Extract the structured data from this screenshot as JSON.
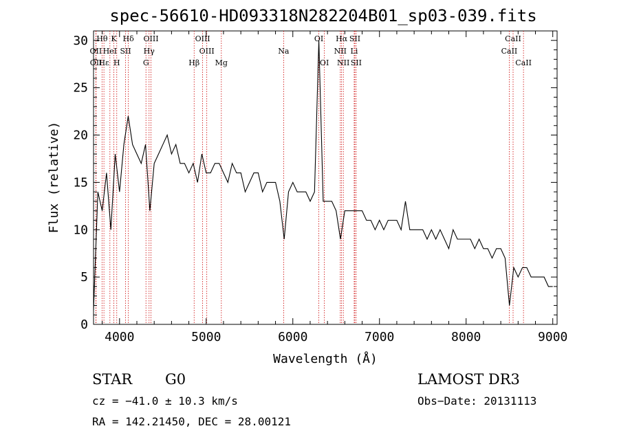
{
  "chart_data": {
    "type": "line",
    "title": "spec-56610-HD093318N282204B01_sp03-039.fits",
    "xlabel": "Wavelength (Å)",
    "ylabel": "Flux (relative)",
    "xlim": [
      3700,
      9050
    ],
    "ylim": [
      0,
      31
    ],
    "xticks": [
      4000,
      5000,
      6000,
      7000,
      8000,
      9000
    ],
    "yticks": [
      0,
      5,
      10,
      15,
      20,
      25,
      30
    ],
    "xtick_labels": [
      "4000",
      "5000",
      "6000",
      "7000",
      "8000",
      "9000"
    ],
    "ytick_labels": [
      "0",
      "5",
      "10",
      "15",
      "20",
      "25",
      "30"
    ],
    "series": [
      {
        "name": "flux",
        "color": "#000000",
        "x": [
          3700,
          3750,
          3800,
          3850,
          3900,
          3950,
          4000,
          4050,
          4100,
          4150,
          4200,
          4250,
          4300,
          4350,
          4400,
          4450,
          4500,
          4550,
          4600,
          4650,
          4700,
          4750,
          4800,
          4850,
          4900,
          4950,
          5000,
          5050,
          5100,
          5150,
          5200,
          5250,
          5300,
          5350,
          5400,
          5450,
          5500,
          5550,
          5600,
          5650,
          5700,
          5750,
          5800,
          5850,
          5900,
          5950,
          6000,
          6050,
          6100,
          6150,
          6200,
          6250,
          6300,
          6350,
          6400,
          6450,
          6500,
          6550,
          6600,
          6650,
          6700,
          6750,
          6800,
          6850,
          6900,
          6950,
          7000,
          7050,
          7100,
          7150,
          7200,
          7250,
          7300,
          7350,
          7400,
          7450,
          7500,
          7550,
          7600,
          7650,
          7700,
          7750,
          7800,
          7850,
          7900,
          7950,
          8000,
          8050,
          8100,
          8150,
          8200,
          8250,
          8300,
          8350,
          8400,
          8450,
          8500,
          8550,
          8600,
          8650,
          8700,
          8750,
          8800,
          8850,
          8900,
          8950,
          9000
        ],
        "y": [
          1.5,
          14,
          12,
          16,
          10,
          18,
          14,
          19,
          22,
          19,
          18,
          17,
          19,
          12,
          17,
          18,
          19,
          20,
          18,
          19,
          17,
          17,
          16,
          17,
          15,
          18,
          16,
          16,
          17,
          17,
          16,
          15,
          17,
          16,
          16,
          14,
          15,
          16,
          16,
          14,
          15,
          15,
          15,
          13,
          9,
          14,
          15,
          14,
          14,
          14,
          13,
          14,
          30,
          13,
          13,
          13,
          12,
          9,
          12,
          12,
          12,
          12,
          12,
          11,
          11,
          10,
          11,
          10,
          11,
          11,
          11,
          10,
          13,
          10,
          10,
          10,
          10,
          9,
          10,
          9,
          10,
          9,
          8,
          10,
          9,
          9,
          9,
          9,
          8,
          9,
          8,
          8,
          7,
          8,
          8,
          7,
          2,
          6,
          5,
          6,
          6,
          5,
          5,
          5,
          5,
          4,
          4
        ]
      }
    ],
    "lines": [
      {
        "label": "Hθ",
        "x": 3798,
        "row": 1
      },
      {
        "label": "OII",
        "x": 3727,
        "row": 2
      },
      {
        "label": "OII",
        "x": 3729,
        "row": 3
      },
      {
        "label": "Hε",
        "x": 3820,
        "row": 3
      },
      {
        "label": "HeI",
        "x": 3889,
        "row": 2
      },
      {
        "label": "K",
        "x": 3934,
        "row": 1
      },
      {
        "label": "SII",
        "x": 4070,
        "row": 2
      },
      {
        "label": "H",
        "x": 3968,
        "row": 3
      },
      {
        "label": "Hδ",
        "x": 4102,
        "row": 1
      },
      {
        "label": "OIII",
        "x": 4363,
        "row": 1
      },
      {
        "label": "Hγ",
        "x": 4341,
        "row": 2
      },
      {
        "label": "G",
        "x": 4305,
        "row": 3
      },
      {
        "label": "OIII",
        "x": 4959,
        "row": 1
      },
      {
        "label": "OIII",
        "x": 5007,
        "row": 2
      },
      {
        "label": "Hβ",
        "x": 4861,
        "row": 3
      },
      {
        "label": "Mg",
        "x": 5175,
        "row": 3
      },
      {
        "label": "Na",
        "x": 5894,
        "row": 2
      },
      {
        "label": "OI",
        "x": 6300,
        "row": 1
      },
      {
        "label": "OI",
        "x": 6364,
        "row": 3
      },
      {
        "label": "Hα",
        "x": 6563,
        "row": 1
      },
      {
        "label": "SII",
        "x": 6716,
        "row": 1
      },
      {
        "label": "NII",
        "x": 6548,
        "row": 2
      },
      {
        "label": "Li",
        "x": 6708,
        "row": 2
      },
      {
        "label": "NII",
        "x": 6583,
        "row": 3
      },
      {
        "label": "SII",
        "x": 6731,
        "row": 3
      },
      {
        "label": "CaII",
        "x": 8542,
        "row": 1
      },
      {
        "label": "CaII",
        "x": 8498,
        "row": 2
      },
      {
        "label": "CaII",
        "x": 8662,
        "row": 3
      }
    ]
  },
  "info": {
    "class": "STAR",
    "subclass": "G0",
    "survey": "LAMOST DR3",
    "cz": "cz = −41.0 ± 10.3 km/s",
    "obs_date": "Obs−Date: 20131113",
    "radec": "RA = 142.21450, DEC =  28.00121"
  },
  "colors": {
    "line_marker": "#cc0000",
    "spectrum": "#000000",
    "axes": "#000000"
  }
}
